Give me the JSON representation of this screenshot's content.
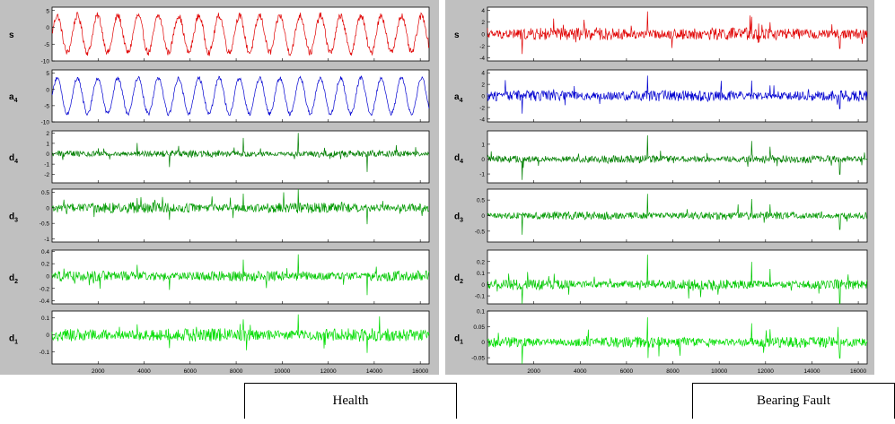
{
  "colors": {
    "panel_bg": "#c0c0c0",
    "axes_bg": "#ffffff",
    "s": "#e00000",
    "a4": "#0000d0",
    "d4": "#007f00",
    "d3": "#009900",
    "d2": "#00c800",
    "d1": "#00dd00"
  },
  "x_ticks": [
    "2000",
    "4000",
    "6000",
    "8000",
    "10000",
    "12000",
    "14000",
    "16000"
  ],
  "captions": {
    "left": "Health",
    "right": "Bearing Fault"
  },
  "chart_data": [
    {
      "type": "line",
      "title": "Health",
      "xlabel": "",
      "xlim": [
        0,
        16384
      ],
      "x_tick_values": [
        2000,
        4000,
        6000,
        8000,
        10000,
        12000,
        14000,
        16000
      ],
      "rows": [
        {
          "name": "s",
          "label_base": "s",
          "label_sub": "",
          "ylim": [
            -10,
            6
          ],
          "y_ticks": [
            "5",
            "0",
            "-5",
            "-10"
          ],
          "y_tick_values": [
            5,
            0,
            -5,
            -10
          ],
          "signal": "sine",
          "period": 880,
          "amplitude": 5.5,
          "offset": -2,
          "noise": 1.0,
          "color_key": "s"
        },
        {
          "name": "a4",
          "label_base": "a",
          "label_sub": "4",
          "ylim": [
            -10,
            6
          ],
          "y_ticks": [
            "5",
            "0",
            "-5",
            "-10"
          ],
          "y_tick_values": [
            5,
            0,
            -5,
            -10
          ],
          "signal": "sine",
          "period": 880,
          "amplitude": 5.5,
          "offset": -2,
          "noise": 0.6,
          "color_key": "a4"
        },
        {
          "name": "d4",
          "label_base": "d",
          "label_sub": "4",
          "ylim": [
            -2.8,
            2.2
          ],
          "y_ticks": [
            "2",
            "1",
            "0",
            "-1",
            "-2"
          ],
          "y_tick_values": [
            2,
            1,
            0,
            -1,
            -2
          ],
          "signal": "noise",
          "noise": 0.15,
          "spike": 2.0,
          "color_key": "d4"
        },
        {
          "name": "d3",
          "label_base": "d",
          "label_sub": "3",
          "ylim": [
            -1.1,
            0.6
          ],
          "y_ticks": [
            "0.5",
            "0",
            "-0.5",
            "-1"
          ],
          "y_tick_values": [
            0.5,
            0,
            -0.5,
            -1
          ],
          "signal": "noise",
          "noise": 0.08,
          "spike": 0.6,
          "color_key": "d3"
        },
        {
          "name": "d2",
          "label_base": "d",
          "label_sub": "2",
          "ylim": [
            -0.45,
            0.42
          ],
          "y_ticks": [
            "0.4",
            "0.2",
            "0",
            "-0.2",
            "-0.4"
          ],
          "y_tick_values": [
            0.4,
            0.2,
            0,
            -0.2,
            -0.4
          ],
          "signal": "noise",
          "noise": 0.04,
          "spike": 0.35,
          "color_key": "d2"
        },
        {
          "name": "d1",
          "label_base": "d",
          "label_sub": "1",
          "ylim": [
            -0.17,
            0.14
          ],
          "y_ticks": [
            "0.1",
            "0",
            "-0.1"
          ],
          "y_tick_values": [
            0.1,
            0,
            -0.1
          ],
          "signal": "noise",
          "noise": 0.018,
          "spike": 0.12,
          "color_key": "d1"
        }
      ],
      "spike_positions": [
        10700,
        13700,
        8300,
        5100,
        3700
      ]
    },
    {
      "type": "line",
      "title": "Bearing Fault",
      "xlabel": "",
      "xlim": [
        0,
        16384
      ],
      "x_tick_values": [
        2000,
        4000,
        6000,
        8000,
        10000,
        12000,
        14000,
        16000
      ],
      "rows": [
        {
          "name": "s",
          "label_base": "s",
          "label_sub": "",
          "ylim": [
            -4.5,
            4.5
          ],
          "y_ticks": [
            "4",
            "2",
            "0",
            "-2",
            "-4"
          ],
          "y_tick_values": [
            4,
            2,
            0,
            -2,
            -4
          ],
          "signal": "noise",
          "noise": 0.5,
          "spike": 3.8,
          "color_key": "s"
        },
        {
          "name": "a4",
          "label_base": "a",
          "label_sub": "4",
          "ylim": [
            -4.5,
            4.5
          ],
          "y_ticks": [
            "4",
            "2",
            "0",
            "-2",
            "-4"
          ],
          "y_tick_values": [
            4,
            2,
            0,
            -2,
            -4
          ],
          "signal": "noise",
          "noise": 0.45,
          "spike": 3.5,
          "color_key": "a4"
        },
        {
          "name": "d4",
          "label_base": "d",
          "label_sub": "4",
          "ylim": [
            -1.6,
            1.9
          ],
          "y_ticks": [
            "1",
            "0",
            "-1"
          ],
          "y_tick_values": [
            1,
            0,
            -1
          ],
          "signal": "noise",
          "noise": 0.12,
          "spike": 1.6,
          "color_key": "d4"
        },
        {
          "name": "d3",
          "label_base": "d",
          "label_sub": "3",
          "ylim": [
            -0.85,
            0.85
          ],
          "y_ticks": [
            "0.5",
            "0",
            "-0.5"
          ],
          "y_tick_values": [
            0.5,
            0,
            -0.5
          ],
          "signal": "noise",
          "noise": 0.06,
          "spike": 0.7,
          "color_key": "d3"
        },
        {
          "name": "d2",
          "label_base": "d",
          "label_sub": "2",
          "ylim": [
            -0.17,
            0.3
          ],
          "y_ticks": [
            "0.2",
            "0.1",
            "0",
            "-0.1"
          ],
          "y_tick_values": [
            0.2,
            0.1,
            0,
            -0.1
          ],
          "signal": "noise",
          "noise": 0.02,
          "spike": 0.26,
          "color_key": "d2"
        },
        {
          "name": "d1",
          "label_base": "d",
          "label_sub": "1",
          "ylim": [
            -0.07,
            0.1
          ],
          "y_ticks": [
            "0.1",
            "0.05",
            "0",
            "-0.05"
          ],
          "y_tick_values": [
            0.1,
            0.05,
            0,
            -0.05
          ],
          "signal": "noise",
          "noise": 0.008,
          "spike": 0.08,
          "color_key": "d1"
        }
      ],
      "spike_positions": [
        6900,
        1500,
        11400,
        15200,
        12200
      ]
    }
  ]
}
